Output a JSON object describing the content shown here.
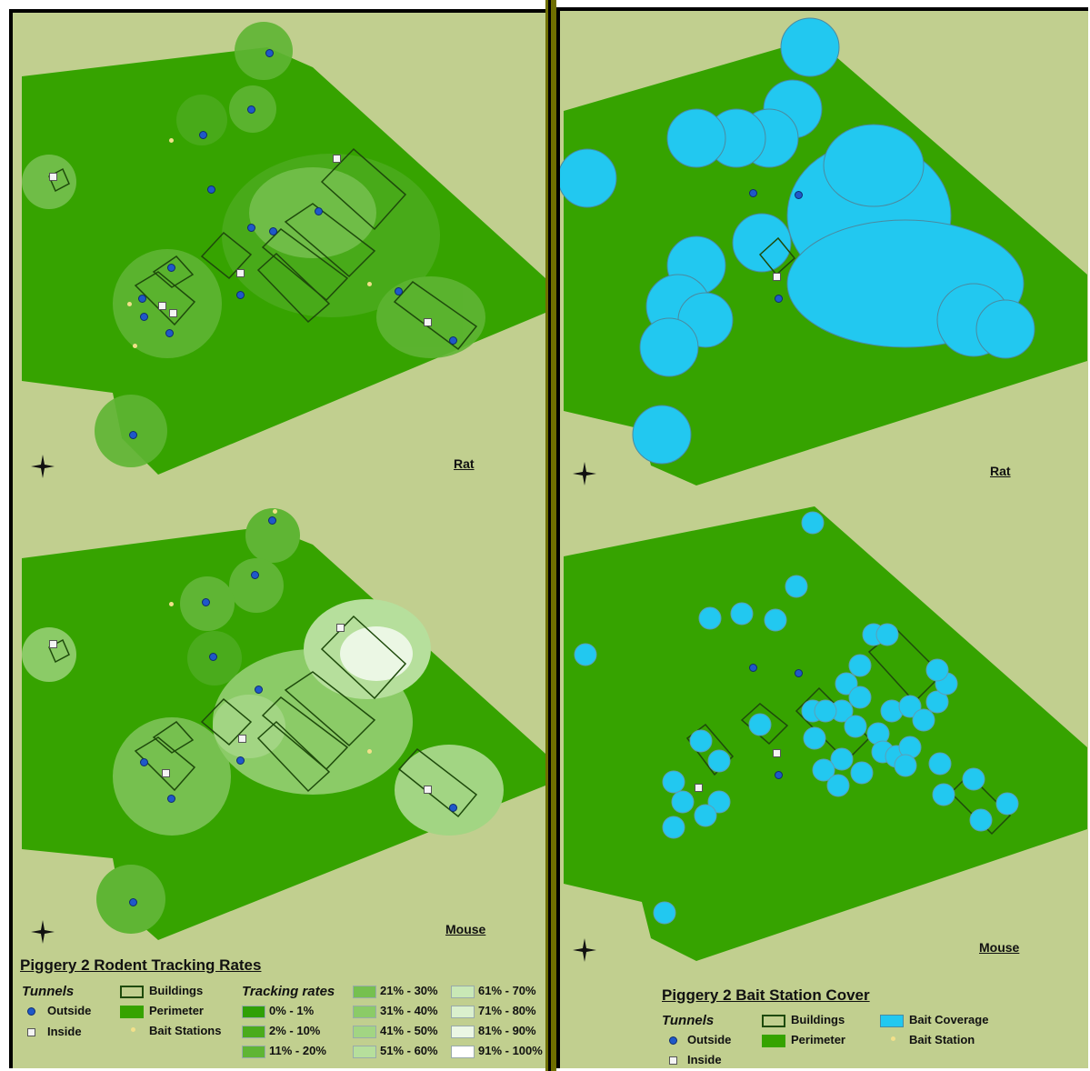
{
  "left_panel": {
    "top_map_label": "Rat",
    "bottom_map_label": "Mouse",
    "legend": {
      "title": "Piggery 2 Rodent Tracking Rates",
      "tunnels_heading": "Tunnels",
      "outside_label": "Outside",
      "inside_label": "Inside",
      "buildings_label": "Buildings",
      "perimeter_label": "Perimeter",
      "bait_stations_label": "Bait Stations",
      "tracking_heading": "Tracking rates",
      "tracking_classes": [
        {
          "label": "0% - 1%",
          "color": "#2fa005"
        },
        {
          "label": "2% - 10%",
          "color": "#4aab1c"
        },
        {
          "label": "11% - 20%",
          "color": "#5fb534"
        },
        {
          "label": "21% - 30%",
          "color": "#76c04f"
        },
        {
          "label": "31% - 40%",
          "color": "#8bcb67"
        },
        {
          "label": "41% - 50%",
          "color": "#a2d583"
        },
        {
          "label": "51% - 60%",
          "color": "#b6df9c"
        },
        {
          "label": "61% - 70%",
          "color": "#c9e8b6"
        },
        {
          "label": "71% - 80%",
          "color": "#daf0cd"
        },
        {
          "label": "81% - 90%",
          "color": "#ebf7e4"
        },
        {
          "label": "91% - 100%",
          "color": "#ffffff"
        }
      ]
    }
  },
  "right_panel": {
    "top_map_label": "Rat",
    "bottom_map_label": "Mouse",
    "legend": {
      "title": "Piggery 2 Bait Station Cover",
      "tunnels_heading": "Tunnels",
      "outside_label": "Outside",
      "inside_label": "Inside",
      "buildings_label": "Buildings",
      "perimeter_label": "Perimeter",
      "bait_coverage_label": "Bait Coverage",
      "bait_station_label": "Bait Station"
    }
  },
  "colors": {
    "background": "#c1cf8f",
    "perimeter": "#36a300",
    "bait_coverage": "#22c8f0",
    "tunnel_outside": "#1f58c9",
    "bait_station": "#f2e08a",
    "divider": "#6f6f00"
  },
  "icons": [
    "compass-rose-icon"
  ]
}
